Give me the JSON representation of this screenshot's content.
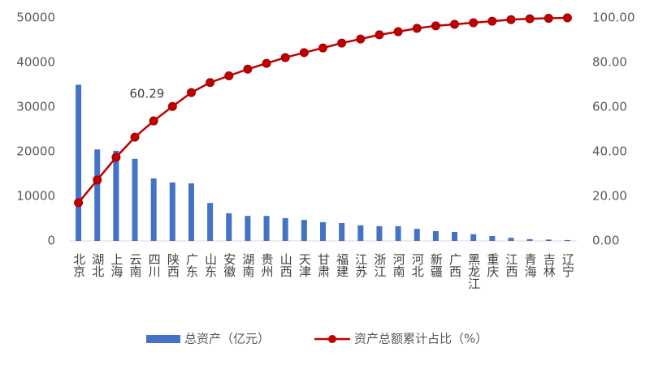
{
  "chart_data": {
    "type": "bar-line",
    "categories": [
      "北京",
      "湖北",
      "上海",
      "云南",
      "四川",
      "陕西",
      "广东",
      "山东",
      "安徽",
      "湖南",
      "贵州",
      "山西",
      "天津",
      "甘肃",
      "福建",
      "江苏",
      "浙江",
      "河南",
      "河北",
      "新疆",
      "广西",
      "黑龙江",
      "重庆",
      "江西",
      "青海",
      "吉林",
      "辽宁"
    ],
    "series": [
      {
        "name": "总资产（亿元）",
        "type": "bar",
        "color": "#4472c4",
        "values": [
          35000,
          20500,
          20200,
          18400,
          14000,
          13100,
          12900,
          8500,
          6200,
          5600,
          5600,
          5100,
          4700,
          4200,
          4000,
          3500,
          3300,
          3300,
          2700,
          2200,
          2000,
          1500,
          1100,
          700,
          400,
          300,
          200
        ]
      },
      {
        "name": "资产总额累计占比（%）",
        "type": "line",
        "axis": "y2",
        "color": "#c00000",
        "values": [
          17.1,
          27.3,
          37.5,
          46.5,
          53.8,
          60.29,
          66.5,
          71,
          74,
          77,
          79.6,
          82.2,
          84.4,
          86.5,
          88.7,
          90.5,
          92.4,
          93.8,
          95.3,
          96.4,
          97.1,
          97.8,
          98.5,
          99.2,
          99.6,
          99.8,
          100
        ],
        "value_labels": [
          null,
          null,
          null,
          null,
          null,
          "60.29",
          null,
          null,
          null,
          null,
          null,
          null,
          null,
          null,
          null,
          null,
          null,
          null,
          null,
          null,
          null,
          null,
          null,
          null,
          null,
          null,
          null
        ]
      }
    ],
    "ylim": [
      0,
      50000
    ],
    "yticks": [
      0,
      10000,
      20000,
      30000,
      40000,
      50000
    ],
    "y2lim": [
      0,
      100
    ],
    "y2ticks": [
      {
        "value": 0,
        "label": "0.00"
      },
      {
        "value": 20,
        "label": "20.00"
      },
      {
        "value": 40,
        "label": "40.00"
      },
      {
        "value": 60,
        "label": "60.00"
      },
      {
        "value": 80,
        "label": "80.00"
      },
      {
        "value": 100,
        "label": "100.00"
      }
    ],
    "legend": "bottom"
  }
}
